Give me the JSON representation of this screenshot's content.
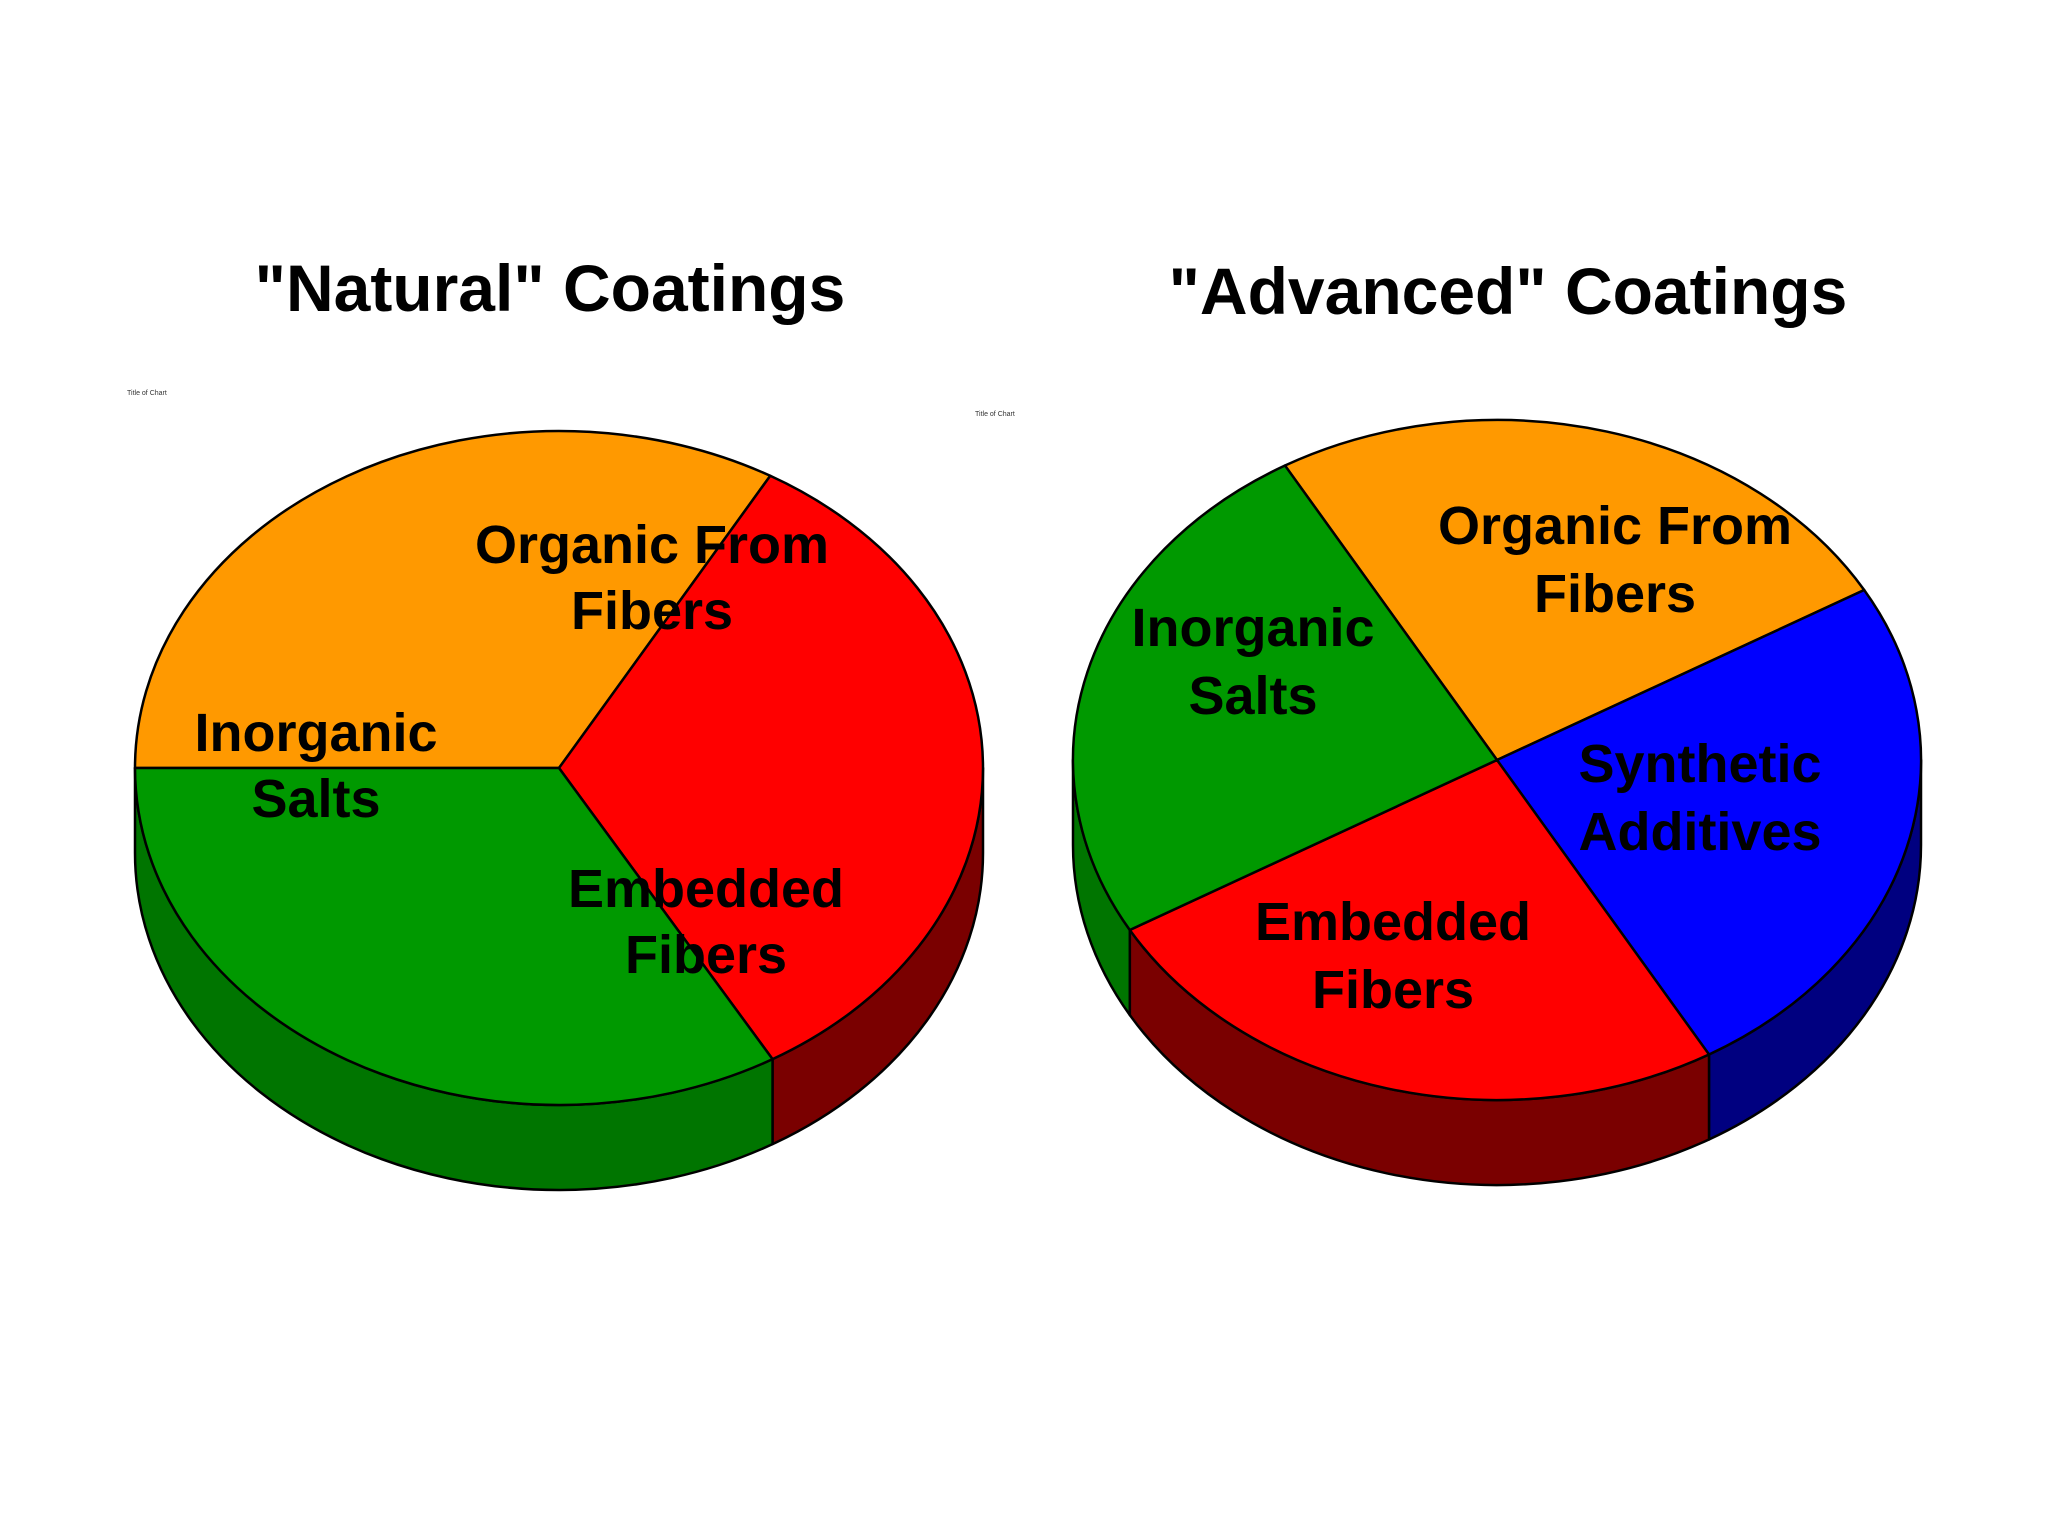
{
  "chart_data": [
    {
      "type": "pie",
      "style": "3d",
      "title": "\"Natural\"  Coatings",
      "subtitle": "Title of Chart",
      "slices": [
        {
          "label": "Organic From Fibers",
          "label_lines": [
            "Organic From",
            "Fibers"
          ],
          "value": 33.3,
          "color": "#FF9900",
          "side_color": "#B36B00"
        },
        {
          "label": "Embedded Fibers",
          "label_lines": [
            "Embedded",
            "Fibers"
          ],
          "value": 33.3,
          "color": "#FF0000",
          "side_color": "#7A0000"
        },
        {
          "label": "Inorganic Salts",
          "label_lines": [
            "Inorganic",
            "Salts"
          ],
          "value": 33.4,
          "color": "#009900",
          "side_color": "#007500"
        }
      ]
    },
    {
      "type": "pie",
      "style": "3d",
      "title": "\"Advanced\"  Coatings",
      "subtitle": "Title of Chart",
      "slices": [
        {
          "label": "Organic From Fibers",
          "label_lines": [
            "Organic From",
            "Fibers"
          ],
          "value": 25,
          "color": "#FF9900",
          "side_color": "#B36B00"
        },
        {
          "label": "Synthetic Additives",
          "label_lines": [
            "Synthetic",
            "Additives"
          ],
          "value": 25,
          "color": "#0000FF",
          "side_color": "#000080"
        },
        {
          "label": "Embedded Fibers",
          "label_lines": [
            "Embedded",
            "Fibers"
          ],
          "value": 25,
          "color": "#FF0000",
          "side_color": "#7A0000"
        },
        {
          "label": "Inorganic Salts",
          "label_lines": [
            "Inorganic",
            "Salts"
          ],
          "value": 25,
          "color": "#009900",
          "side_color": "#007500"
        }
      ]
    }
  ]
}
